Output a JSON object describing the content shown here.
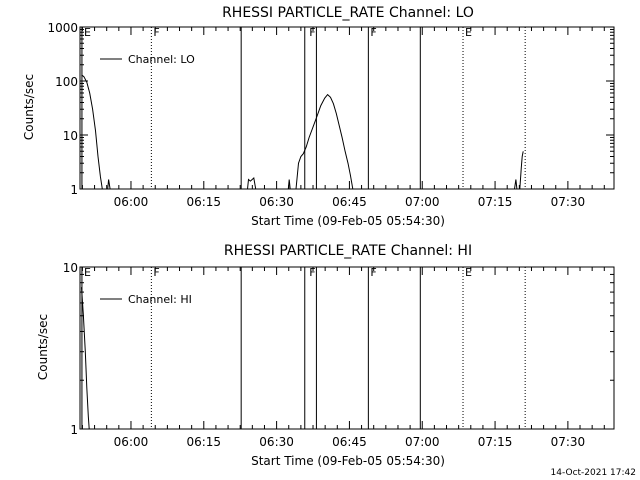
{
  "footer": {
    "timestamp": "14-Oct-2021 17:42"
  },
  "chart_data": [
    {
      "type": "line",
      "title": "RHESSI PARTICLE_RATE Channel: LO",
      "xlabel": "Start Time (09-Feb-05 05:54:30)",
      "ylabel": "Counts/sec",
      "y_scale": "log",
      "ylim": [
        1,
        1000
      ],
      "xlim_minutes": [
        -5,
        105
      ],
      "yticks": [
        {
          "v": 1,
          "label": "1"
        },
        {
          "v": 10,
          "label": "10"
        },
        {
          "v": 100,
          "label": "100"
        },
        {
          "v": 1000,
          "label": "1000"
        }
      ],
      "xticks": [
        {
          "m": 5.5,
          "label": "06:00"
        },
        {
          "m": 20.5,
          "label": "06:15"
        },
        {
          "m": 35.5,
          "label": "06:30"
        },
        {
          "m": 50.5,
          "label": "06:45"
        },
        {
          "m": 65.5,
          "label": "07:00"
        },
        {
          "m": 80.5,
          "label": "07:15"
        },
        {
          "m": 95.5,
          "label": "07:30"
        }
      ],
      "legend": {
        "position": "top-left",
        "entries": [
          "Channel: LO"
        ]
      },
      "color": "#000000",
      "series": [
        {
          "name": "Channel: LO",
          "points": [
            [
              -4.7,
              130
            ],
            [
              -4.2,
              120
            ],
            [
              -3.6,
              95
            ],
            [
              -3.0,
              60
            ],
            [
              -2.4,
              30
            ],
            [
              -1.8,
              12
            ],
            [
              -1.3,
              4
            ],
            [
              -0.8,
              1.7
            ],
            [
              -0.4,
              1
            ],
            [
              0.7,
              1
            ],
            [
              0.9,
              1.5
            ],
            [
              1.2,
              1
            ],
            [
              29.5,
              1
            ],
            [
              29.7,
              1.5
            ],
            [
              30.1,
              1.4
            ],
            [
              30.8,
              1.6
            ],
            [
              31.2,
              1
            ],
            [
              37.9,
              1
            ],
            [
              38.1,
              1.5
            ],
            [
              38.3,
              1
            ],
            [
              39.5,
              1
            ],
            [
              40.0,
              3
            ],
            [
              40.5,
              4
            ],
            [
              41.0,
              4.5
            ],
            [
              41.6,
              6
            ],
            [
              42.2,
              9
            ],
            [
              43.0,
              14
            ],
            [
              43.8,
              22
            ],
            [
              44.6,
              35
            ],
            [
              45.4,
              48
            ],
            [
              46.0,
              56
            ],
            [
              46.6,
              50
            ],
            [
              47.2,
              38
            ],
            [
              47.8,
              25
            ],
            [
              48.4,
              15
            ],
            [
              49.0,
              9
            ],
            [
              49.6,
              5
            ],
            [
              50.2,
              3
            ],
            [
              50.7,
              1.8
            ],
            [
              51.2,
              1
            ],
            [
              84.5,
              1
            ],
            [
              84.8,
              1.5
            ],
            [
              85.0,
              1
            ],
            [
              85.6,
              1
            ],
            [
              85.9,
              2.5
            ],
            [
              86.1,
              4
            ],
            [
              86.3,
              5
            ]
          ]
        }
      ],
      "flags": [
        {
          "m": -4.6,
          "label": "E"
        },
        {
          "m": 9.7,
          "label": "F"
        },
        {
          "m": 41.8,
          "label": "F"
        },
        {
          "m": 54.4,
          "label": "F"
        },
        {
          "m": 73.9,
          "label": "E"
        }
      ],
      "solid_lines_minutes": [
        -4.6,
        28.2,
        41.3,
        43.7,
        54.4,
        65.1
      ],
      "dotted_lines_minutes": [
        9.7,
        73.9,
        86.7
      ]
    },
    {
      "type": "line",
      "title": "RHESSI PARTICLE_RATE Channel: HI",
      "xlabel": "Start Time (09-Feb-05 05:54:30)",
      "ylabel": "Counts/sec",
      "y_scale": "log",
      "ylim": [
        1,
        10
      ],
      "xlim_minutes": [
        -5,
        105
      ],
      "yticks": [
        {
          "v": 1,
          "label": "1"
        },
        {
          "v": 10,
          "label": "10"
        }
      ],
      "xticks": [
        {
          "m": 5.5,
          "label": "06:00"
        },
        {
          "m": 20.5,
          "label": "06:15"
        },
        {
          "m": 35.5,
          "label": "06:30"
        },
        {
          "m": 50.5,
          "label": "06:45"
        },
        {
          "m": 65.5,
          "label": "07:00"
        },
        {
          "m": 80.5,
          "label": "07:15"
        },
        {
          "m": 95.5,
          "label": "07:30"
        }
      ],
      "legend": {
        "position": "top-left",
        "entries": [
          "Channel: HI"
        ]
      },
      "color": "#000000",
      "series": [
        {
          "name": "Channel: HI",
          "points": [
            [
              -4.7,
              7.5
            ],
            [
              -4.3,
              5
            ],
            [
              -3.9,
              3
            ],
            [
              -3.6,
              1.8
            ],
            [
              -3.3,
              1.2
            ],
            [
              -3.1,
              1
            ]
          ]
        }
      ],
      "flags": [
        {
          "m": -4.6,
          "label": "E"
        },
        {
          "m": 9.7,
          "label": "F"
        },
        {
          "m": 41.8,
          "label": "F"
        },
        {
          "m": 54.4,
          "label": "F"
        },
        {
          "m": 73.9,
          "label": "E"
        }
      ],
      "solid_lines_minutes": [
        -4.6,
        28.2,
        41.3,
        43.7,
        54.4,
        65.1
      ],
      "dotted_lines_minutes": [
        9.7,
        73.9,
        86.7
      ]
    }
  ]
}
